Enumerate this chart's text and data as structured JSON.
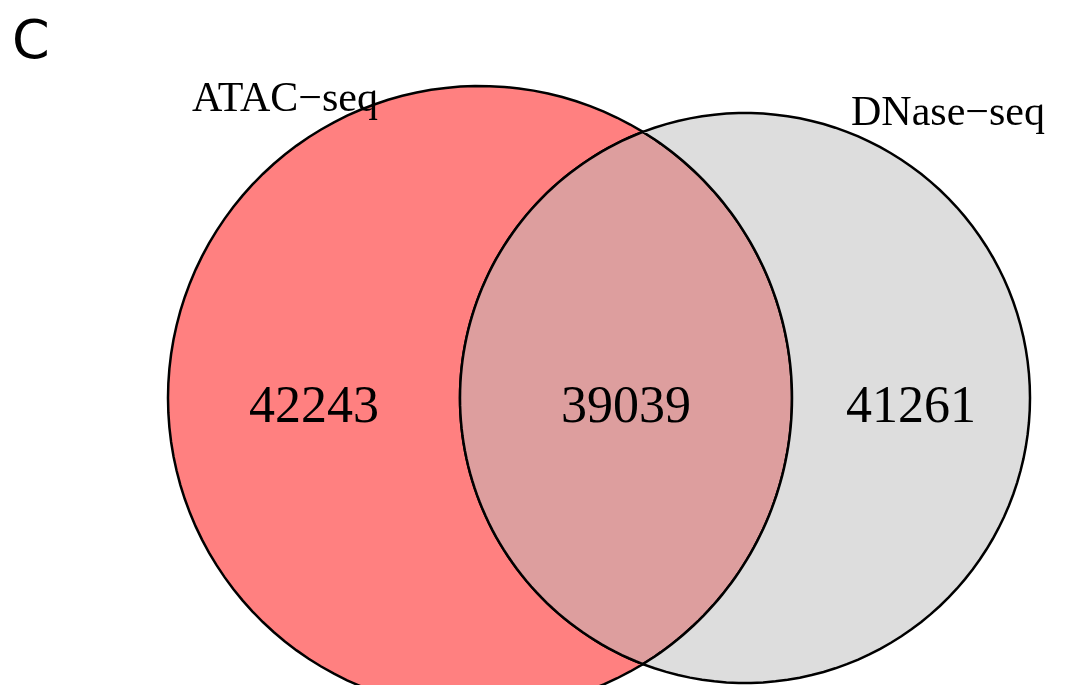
{
  "chart_data": {
    "type": "other",
    "title": "C",
    "annotations": [
      "ATAC−seq",
      "DNase−seq"
    ],
    "categories": [
      null,
      null,
      null
    ],
    "values": [
      42243,
      39039,
      41261
    ],
    "colors": [
      "#ff8080",
      "#dd9e9e",
      "#dddddd"
    ],
    "data_labels": true
  }
}
